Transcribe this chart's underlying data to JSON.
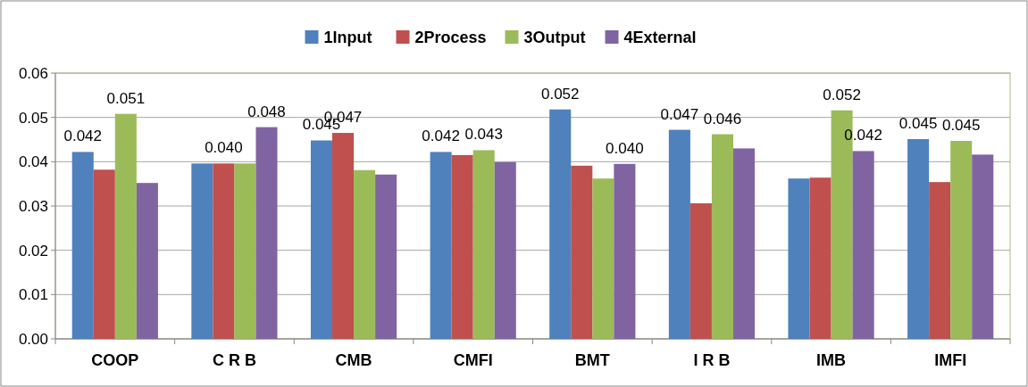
{
  "chart_data": {
    "type": "bar",
    "categories": [
      "COOP",
      "C R B",
      "CMB",
      "CMFI",
      "BMT",
      "I R B",
      "IMB",
      "IMFI"
    ],
    "series": [
      {
        "name": "1Input",
        "color": "#4f81bd",
        "values": [
          0.0422,
          0.0396,
          0.0448,
          0.0422,
          0.0518,
          0.0472,
          0.0362,
          0.0451
        ],
        "value_labels": [
          "0.042",
          null,
          "0.045",
          "0.042",
          "0.052",
          "0.047",
          null,
          "0.045"
        ]
      },
      {
        "name": "2Process",
        "color": "#c0504d",
        "values": [
          0.0382,
          0.0396,
          0.0465,
          0.0415,
          0.0391,
          0.0306,
          0.0364,
          0.0354
        ],
        "value_labels": [
          null,
          "0.040",
          "0.047",
          null,
          null,
          null,
          null,
          null
        ]
      },
      {
        "name": "3Output",
        "color": "#9bbb59",
        "values": [
          0.0508,
          0.0396,
          0.0381,
          0.0426,
          0.0362,
          0.0462,
          0.0516,
          0.0447
        ],
        "value_labels": [
          "0.051",
          null,
          null,
          "0.043",
          null,
          "0.046",
          "0.052",
          "0.045"
        ]
      },
      {
        "name": "4External",
        "color": "#8064a2",
        "values": [
          0.0352,
          0.0478,
          0.0371,
          0.0399,
          0.0395,
          0.043,
          0.0424,
          0.0416
        ],
        "value_labels": [
          null,
          "0.048",
          null,
          null,
          "0.040",
          null,
          "0.042",
          null
        ]
      }
    ],
    "ylim": [
      0,
      0.06
    ],
    "yticks": [
      {
        "value": 0,
        "label": "0.00"
      },
      {
        "value": 0.01,
        "label": "0.01"
      },
      {
        "value": 0.02,
        "label": "0.02"
      },
      {
        "value": 0.03,
        "label": "0.03"
      },
      {
        "value": 0.04,
        "label": "0.04"
      },
      {
        "value": 0.05,
        "label": "0.05"
      },
      {
        "value": 0.06,
        "label": "0.06"
      }
    ],
    "grid": "y",
    "legend": "top"
  }
}
